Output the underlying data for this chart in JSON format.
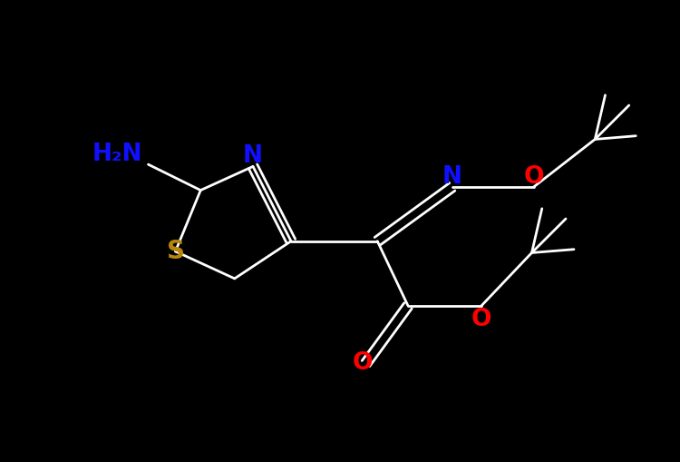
{
  "bg_color": "#000000",
  "bond_color": "#ffffff",
  "N_color": "#1010ff",
  "S_color": "#b8860b",
  "O_color": "#ff0000",
  "H2N_color": "#1010ff",
  "xlim": [
    0.0,
    10.0
  ],
  "ylim": [
    0.0,
    6.8
  ]
}
